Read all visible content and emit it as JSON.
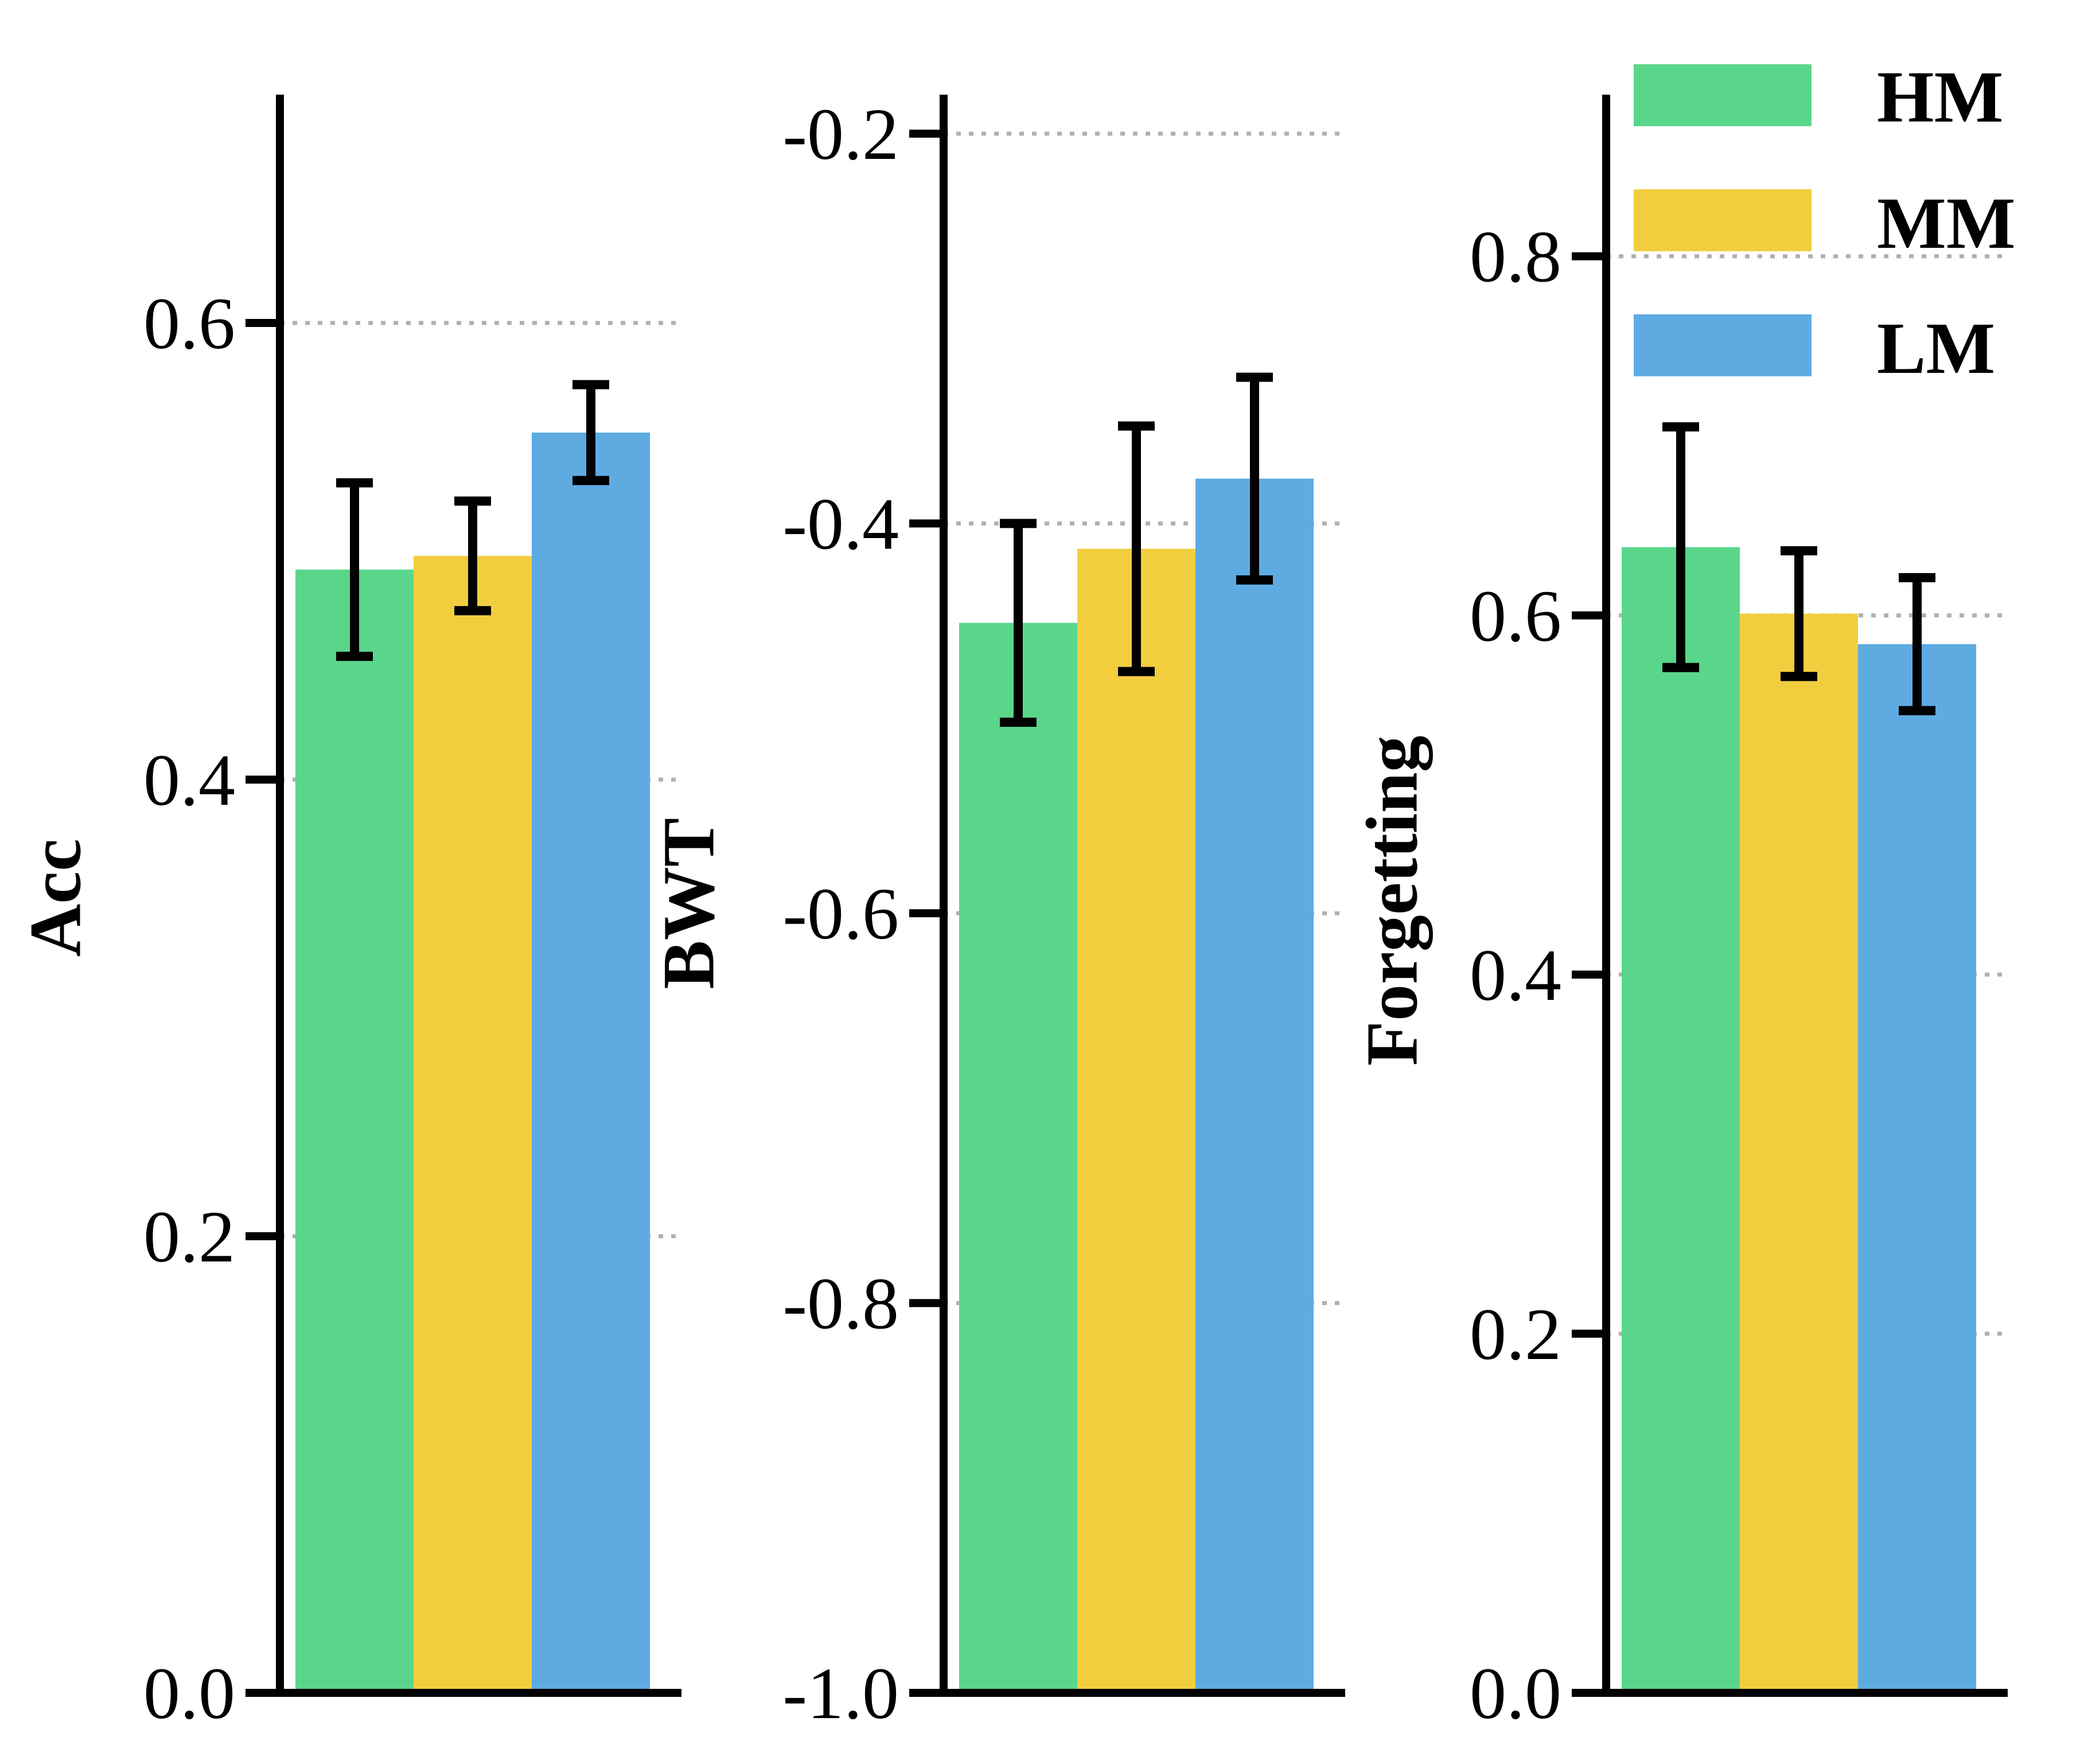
{
  "chart_data": [
    {
      "type": "bar",
      "title": "",
      "xlabel": "",
      "ylabel": "Acc",
      "ylim": [
        0.0,
        0.7
      ],
      "yticks": [
        0.0,
        0.2,
        0.4,
        0.6
      ],
      "tick_labels": [
        "0.0",
        "0.2",
        "0.4",
        "0.6"
      ],
      "grid": true,
      "series": [
        {
          "name": "HM",
          "value": 0.492,
          "err": 0.038
        },
        {
          "name": "MM",
          "value": 0.498,
          "err": 0.024
        },
        {
          "name": "LM",
          "value": 0.552,
          "err": 0.021
        }
      ]
    },
    {
      "type": "bar",
      "title": "",
      "xlabel": "",
      "ylabel": "BWT",
      "ylim": [
        -1.0,
        -0.18
      ],
      "yticks": [
        -1.0,
        -0.8,
        -0.6,
        -0.4,
        -0.2
      ],
      "tick_labels": [
        "-1.0",
        "-0.8",
        "-0.6",
        "-0.4",
        "-0.2"
      ],
      "grid": true,
      "series": [
        {
          "name": "HM",
          "value": -0.451,
          "err": 0.051
        },
        {
          "name": "MM",
          "value": -0.413,
          "err": 0.063
        },
        {
          "name": "LM",
          "value": -0.377,
          "err": 0.052
        }
      ]
    },
    {
      "type": "bar",
      "title": "",
      "xlabel": "",
      "ylabel": "Forgetting",
      "ylim": [
        0.0,
        0.89
      ],
      "yticks": [
        0.0,
        0.2,
        0.4,
        0.6,
        0.8
      ],
      "tick_labels": [
        "0.0",
        "0.2",
        "0.4",
        "0.6",
        "0.8"
      ],
      "grid": true,
      "series": [
        {
          "name": "HM",
          "value": 0.638,
          "err": 0.067
        },
        {
          "name": "MM",
          "value": 0.601,
          "err": 0.035
        },
        {
          "name": "LM",
          "value": 0.584,
          "err": 0.037
        }
      ]
    }
  ],
  "legend": {
    "position": "top-right",
    "entries": [
      {
        "name": "HM",
        "color": "#5ad68b"
      },
      {
        "name": "MM",
        "color": "#f2ce3f"
      },
      {
        "name": "LM",
        "color": "#5eabe2"
      }
    ]
  },
  "colors": {
    "HM": "#5ad68b",
    "MM": "#f2ce3f",
    "LM": "#5eabe2",
    "grid": "#b0b0b0",
    "axis": "#000000"
  }
}
